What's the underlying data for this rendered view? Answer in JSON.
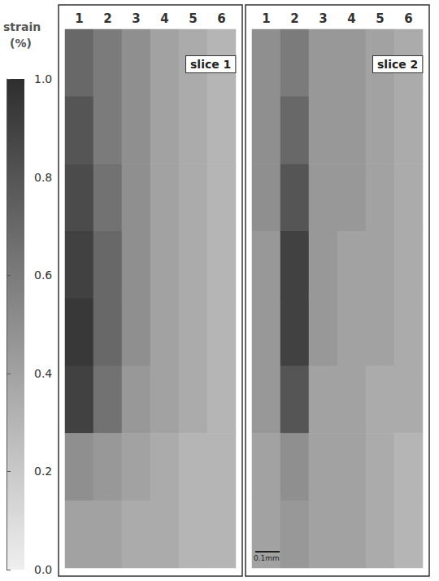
{
  "chart_data": {
    "type": "heatmap",
    "tick_labels": "x",
    "colorbar": {
      "title": "strain",
      "unit": "(%)",
      "range": [
        0,
        1
      ],
      "ticks": [
        {
          "value": 0,
          "label": "0.0"
        },
        {
          "value": 0.2,
          "label": "0.2"
        },
        {
          "value": 0.4,
          "label": "0.4"
        },
        {
          "value": 0.6,
          "label": "0.6"
        },
        {
          "value": 0.8,
          "label": "0.8"
        },
        {
          "value": 1,
          "label": "1.0"
        }
      ]
    },
    "panels": [
      {
        "title": "slice 1",
        "fibers": [
          "1",
          "2",
          "3",
          "4",
          "5",
          "6"
        ],
        "strain": [
          [
            0.7,
            0.8,
            0.85,
            0.9,
            0.95,
            0.9,
            0.5,
            0.4
          ],
          [
            0.6,
            0.6,
            0.65,
            0.7,
            0.7,
            0.65,
            0.45,
            0.4
          ],
          [
            0.5,
            0.5,
            0.5,
            0.5,
            0.5,
            0.45,
            0.4,
            0.35
          ],
          [
            0.4,
            0.4,
            0.4,
            0.4,
            0.4,
            0.4,
            0.35,
            0.35
          ],
          [
            0.35,
            0.35,
            0.35,
            0.35,
            0.35,
            0.35,
            0.3,
            0.3
          ],
          [
            0.3,
            0.3,
            0.3,
            0.3,
            0.3,
            0.3,
            0.3,
            0.3
          ]
        ]
      },
      {
        "title": "slice 2",
        "fibers": [
          "1",
          "2",
          "3",
          "4",
          "5",
          "6"
        ],
        "scale_bar": "0.1mm",
        "strain": [
          [
            0.5,
            0.5,
            0.5,
            0.45,
            0.45,
            0.45,
            0.4,
            0.4
          ],
          [
            0.6,
            0.7,
            0.8,
            0.9,
            0.9,
            0.8,
            0.5,
            0.45
          ],
          [
            0.45,
            0.45,
            0.45,
            0.45,
            0.45,
            0.4,
            0.4,
            0.4
          ],
          [
            0.45,
            0.45,
            0.45,
            0.4,
            0.4,
            0.4,
            0.4,
            0.4
          ],
          [
            0.4,
            0.4,
            0.4,
            0.4,
            0.4,
            0.35,
            0.35,
            0.35
          ],
          [
            0.35,
            0.35,
            0.35,
            0.35,
            0.35,
            0.35,
            0.3,
            0.3
          ]
        ]
      }
    ]
  }
}
